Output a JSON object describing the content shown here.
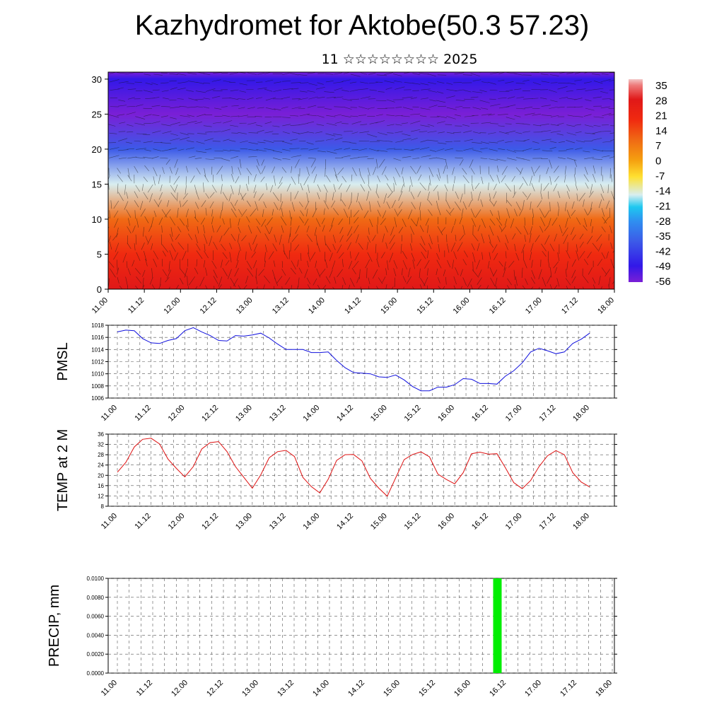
{
  "title": "Kazhydromet for Aktobe(50.3 57.23)",
  "subtitle": "11 ☆☆☆☆☆☆☆☆ 2025",
  "time_labels": [
    "11.00",
    "11.12",
    "12.00",
    "12.12",
    "13.00",
    "13.12",
    "14.00",
    "14.12",
    "15.00",
    "15.12",
    "16.00",
    "16.12",
    "17.00",
    "17.12",
    "18.00"
  ],
  "chart_data": [
    {
      "type": "heatmap",
      "title": "",
      "ylim": [
        0,
        31
      ],
      "y_ticks": [
        "0",
        "5",
        "10",
        "15",
        "20",
        "25",
        "30"
      ],
      "colorbar_labels": [
        "35",
        "28",
        "21",
        "14",
        "7",
        "0",
        "-7",
        "-14",
        "-21",
        "-28",
        "-35",
        "-42",
        "-49",
        "-56"
      ],
      "colorbar_range": [
        -60,
        40
      ],
      "overlay": "wind streamlines / barbs",
      "levels": [
        0,
        5,
        10,
        15,
        20,
        25,
        30
      ],
      "values_by_level": [
        30,
        26,
        14,
        -12,
        -36,
        -54,
        -48
      ]
    },
    {
      "type": "line",
      "ylabel": "PMSL",
      "ylim": [
        1006,
        1018
      ],
      "y_ticks": [
        "1006",
        "1008",
        "1010",
        "1012",
        "1014",
        "1016",
        "1018"
      ],
      "series": [
        {
          "color": "#1010dd",
          "values": [
            1016.9,
            1017.2,
            1017.1,
            1015.8,
            1015.1,
            1015.0,
            1015.5,
            1015.8,
            1017.1,
            1017.6,
            1016.9,
            1016.3,
            1015.5,
            1015.4,
            1016.3,
            1016.2,
            1016.4,
            1016.7,
            1015.9,
            1014.9,
            1014.0,
            1014.0,
            1014.0,
            1013.5,
            1013.5,
            1013.6,
            1012.2,
            1011.0,
            1010.2,
            1010.1,
            1010.0,
            1009.5,
            1009.4,
            1009.8,
            1009.0,
            1007.9,
            1007.2,
            1007.2,
            1007.8,
            1007.8,
            1008.2,
            1009.2,
            1009.1,
            1008.4,
            1008.4,
            1008.3,
            1009.6,
            1010.5,
            1011.8,
            1013.6,
            1014.2,
            1013.8,
            1013.3,
            1013.6,
            1015.0,
            1015.7,
            1016.7
          ]
        }
      ]
    },
    {
      "type": "line",
      "ylabel": "TEMP at 2 M",
      "ylim": [
        8,
        36
      ],
      "y_ticks": [
        "8",
        "12",
        "16",
        "20",
        "24",
        "28",
        "32",
        "36"
      ],
      "series": [
        {
          "color": "#dd1010",
          "values": [
            21.2,
            25.0,
            31.0,
            34.0,
            34.4,
            32.2,
            26.3,
            22.7,
            19.4,
            23.4,
            30.2,
            32.7,
            33.1,
            29.2,
            23.4,
            19.2,
            15.0,
            20.2,
            26.8,
            29.2,
            29.7,
            27.3,
            19.2,
            15.6,
            13.2,
            18.5,
            25.8,
            28.0,
            28.1,
            25.6,
            18.8,
            15.0,
            11.9,
            19.0,
            26.1,
            28.1,
            29.1,
            27.2,
            20.5,
            18.4,
            16.7,
            21.0,
            28.4,
            29.0,
            28.2,
            28.4,
            23.0,
            17.2,
            14.8,
            18.0,
            23.4,
            27.6,
            29.6,
            28.0,
            21.0,
            17.4,
            15.5
          ]
        }
      ]
    },
    {
      "type": "bar",
      "ylabel": "PRECIP, mm",
      "ylim": [
        0,
        0.01
      ],
      "y_ticks": [
        "0.0000",
        "0.0020",
        "0.0040",
        "0.0060",
        "0.0080",
        "0.0100"
      ],
      "color": "#00ee00",
      "bars": [
        {
          "x": "16.09",
          "value": 0.01
        }
      ]
    }
  ]
}
